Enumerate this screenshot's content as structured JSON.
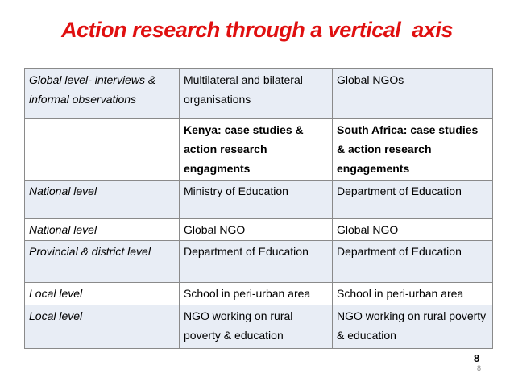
{
  "title": "Action research through a vertical  axis",
  "table": {
    "rows": [
      [
        "Global level- interviews & informal observations",
        "Multilateral and bilateral organisations",
        "Global NGOs"
      ],
      [
        null,
        "Kenya: case studies & action research engagments",
        "South Africa: case studies & action research engagements"
      ],
      [
        "National level",
        "Ministry of Education",
        "Department of Education"
      ],
      [
        "National level",
        "Global NGO",
        "Global NGO"
      ],
      [
        "Provincial & district level",
        "Department of Education",
        "Department of Education"
      ],
      [
        "Local  level",
        "School in peri-urban area",
        "School in peri-urban area"
      ],
      [
        "Local level",
        "NGO working on rural poverty & education",
        "NGO working on rural poverty & education"
      ]
    ]
  },
  "page_number": "8",
  "slide_number": "8"
}
